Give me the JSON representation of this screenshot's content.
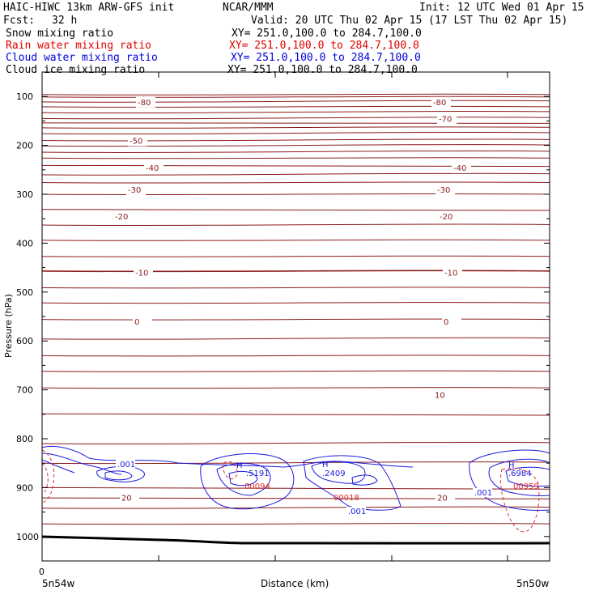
{
  "header": {
    "model": "HAIC-HIWC 13km ARW-GFS init",
    "org": "NCAR/MMM",
    "init": "Init: 12 UTC Wed 01 Apr 15",
    "fcst_label": "Fcst:",
    "fcst_value": "32 h",
    "valid": "Valid: 20 UTC Thu 02 Apr 15 (17 LST Thu 02 Apr 15)"
  },
  "legend": [
    {
      "name": "Snow mixing ratio",
      "xy": "XY= 251.0,100.0 to 284.7,100.0",
      "color": "#000000"
    },
    {
      "name": "Rain water mixing ratio",
      "xy": "XY= 251.0,100.0 to 284.7,100.0",
      "color": "#e00000"
    },
    {
      "name": "Cloud water mixing ratio",
      "xy": "XY= 251.0,100.0 to 284.7,100.0",
      "color": "#0000e0"
    },
    {
      "name": "Cloud ice mixing ratio",
      "xy": "XY= 251.0,100.0 to 284.7,100.0",
      "color": "#000000"
    }
  ],
  "chart_data": {
    "type": "line",
    "xlabel": "Distance (km)",
    "ylabel": "Pressure (hPa)",
    "x_start_tick": "0",
    "x_left_label": "5n54w",
    "x_right_label": "5n50w",
    "y_ticks": [
      "100",
      "200",
      "300",
      "400",
      "500",
      "600",
      "700",
      "800",
      "900",
      "1000"
    ],
    "y_scale": "linear, pressure increasing downward",
    "ylim": [
      50,
      1050
    ],
    "temperature_contours": [
      {
        "label": "-80",
        "pressure": 111
      },
      {
        "label": "-70",
        "pressure": 145
      },
      {
        "label": "-50",
        "pressure": 190
      },
      {
        "label": "-40",
        "pressure": 245
      },
      {
        "label": "-30",
        "pressure": 290
      },
      {
        "label": "-20",
        "pressure": 345
      },
      {
        "label": "-10",
        "pressure": 460
      },
      {
        "label": "0",
        "pressure": 560
      },
      {
        "label": "10",
        "pressure": 710
      },
      {
        "label": "20",
        "pressure": 920
      }
    ],
    "cloud_water_labels": [
      ".001",
      ".001",
      ".001"
    ],
    "maxima": [
      {
        "symbol": "H",
        "cloud_water": ".5191",
        "rain": "00094"
      },
      {
        "symbol": "H",
        "cloud_water": ".2409",
        "rain": "00018"
      },
      {
        "symbol": "H",
        "cloud_water": ".6984",
        "rain": "00959"
      }
    ]
  }
}
